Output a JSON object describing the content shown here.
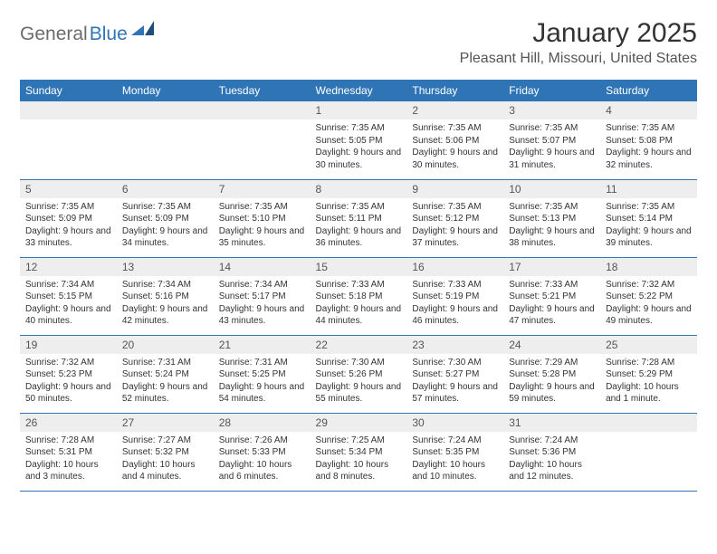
{
  "logo": {
    "part1": "General",
    "part2": "Blue"
  },
  "title": "January 2025",
  "location": "Pleasant Hill, Missouri, United States",
  "day_names": [
    "Sunday",
    "Monday",
    "Tuesday",
    "Wednesday",
    "Thursday",
    "Friday",
    "Saturday"
  ],
  "colors": {
    "header_bg": "#2f75b5",
    "daynum_bg": "#eeeeee",
    "text": "#333333",
    "logo_gray": "#6b6b6b",
    "logo_blue": "#2f75b5"
  },
  "weeks": [
    [
      null,
      null,
      null,
      {
        "n": "1",
        "sr": "7:35 AM",
        "ss": "5:05 PM",
        "dl": "9 hours and 30 minutes."
      },
      {
        "n": "2",
        "sr": "7:35 AM",
        "ss": "5:06 PM",
        "dl": "9 hours and 30 minutes."
      },
      {
        "n": "3",
        "sr": "7:35 AM",
        "ss": "5:07 PM",
        "dl": "9 hours and 31 minutes."
      },
      {
        "n": "4",
        "sr": "7:35 AM",
        "ss": "5:08 PM",
        "dl": "9 hours and 32 minutes."
      }
    ],
    [
      {
        "n": "5",
        "sr": "7:35 AM",
        "ss": "5:09 PM",
        "dl": "9 hours and 33 minutes."
      },
      {
        "n": "6",
        "sr": "7:35 AM",
        "ss": "5:09 PM",
        "dl": "9 hours and 34 minutes."
      },
      {
        "n": "7",
        "sr": "7:35 AM",
        "ss": "5:10 PM",
        "dl": "9 hours and 35 minutes."
      },
      {
        "n": "8",
        "sr": "7:35 AM",
        "ss": "5:11 PM",
        "dl": "9 hours and 36 minutes."
      },
      {
        "n": "9",
        "sr": "7:35 AM",
        "ss": "5:12 PM",
        "dl": "9 hours and 37 minutes."
      },
      {
        "n": "10",
        "sr": "7:35 AM",
        "ss": "5:13 PM",
        "dl": "9 hours and 38 minutes."
      },
      {
        "n": "11",
        "sr": "7:35 AM",
        "ss": "5:14 PM",
        "dl": "9 hours and 39 minutes."
      }
    ],
    [
      {
        "n": "12",
        "sr": "7:34 AM",
        "ss": "5:15 PM",
        "dl": "9 hours and 40 minutes."
      },
      {
        "n": "13",
        "sr": "7:34 AM",
        "ss": "5:16 PM",
        "dl": "9 hours and 42 minutes."
      },
      {
        "n": "14",
        "sr": "7:34 AM",
        "ss": "5:17 PM",
        "dl": "9 hours and 43 minutes."
      },
      {
        "n": "15",
        "sr": "7:33 AM",
        "ss": "5:18 PM",
        "dl": "9 hours and 44 minutes."
      },
      {
        "n": "16",
        "sr": "7:33 AM",
        "ss": "5:19 PM",
        "dl": "9 hours and 46 minutes."
      },
      {
        "n": "17",
        "sr": "7:33 AM",
        "ss": "5:21 PM",
        "dl": "9 hours and 47 minutes."
      },
      {
        "n": "18",
        "sr": "7:32 AM",
        "ss": "5:22 PM",
        "dl": "9 hours and 49 minutes."
      }
    ],
    [
      {
        "n": "19",
        "sr": "7:32 AM",
        "ss": "5:23 PM",
        "dl": "9 hours and 50 minutes."
      },
      {
        "n": "20",
        "sr": "7:31 AM",
        "ss": "5:24 PM",
        "dl": "9 hours and 52 minutes."
      },
      {
        "n": "21",
        "sr": "7:31 AM",
        "ss": "5:25 PM",
        "dl": "9 hours and 54 minutes."
      },
      {
        "n": "22",
        "sr": "7:30 AM",
        "ss": "5:26 PM",
        "dl": "9 hours and 55 minutes."
      },
      {
        "n": "23",
        "sr": "7:30 AM",
        "ss": "5:27 PM",
        "dl": "9 hours and 57 minutes."
      },
      {
        "n": "24",
        "sr": "7:29 AM",
        "ss": "5:28 PM",
        "dl": "9 hours and 59 minutes."
      },
      {
        "n": "25",
        "sr": "7:28 AM",
        "ss": "5:29 PM",
        "dl": "10 hours and 1 minute."
      }
    ],
    [
      {
        "n": "26",
        "sr": "7:28 AM",
        "ss": "5:31 PM",
        "dl": "10 hours and 3 minutes."
      },
      {
        "n": "27",
        "sr": "7:27 AM",
        "ss": "5:32 PM",
        "dl": "10 hours and 4 minutes."
      },
      {
        "n": "28",
        "sr": "7:26 AM",
        "ss": "5:33 PM",
        "dl": "10 hours and 6 minutes."
      },
      {
        "n": "29",
        "sr": "7:25 AM",
        "ss": "5:34 PM",
        "dl": "10 hours and 8 minutes."
      },
      {
        "n": "30",
        "sr": "7:24 AM",
        "ss": "5:35 PM",
        "dl": "10 hours and 10 minutes."
      },
      {
        "n": "31",
        "sr": "7:24 AM",
        "ss": "5:36 PM",
        "dl": "10 hours and 12 minutes."
      },
      null
    ]
  ],
  "labels": {
    "sunrise": "Sunrise:",
    "sunset": "Sunset:",
    "daylight": "Daylight:"
  }
}
